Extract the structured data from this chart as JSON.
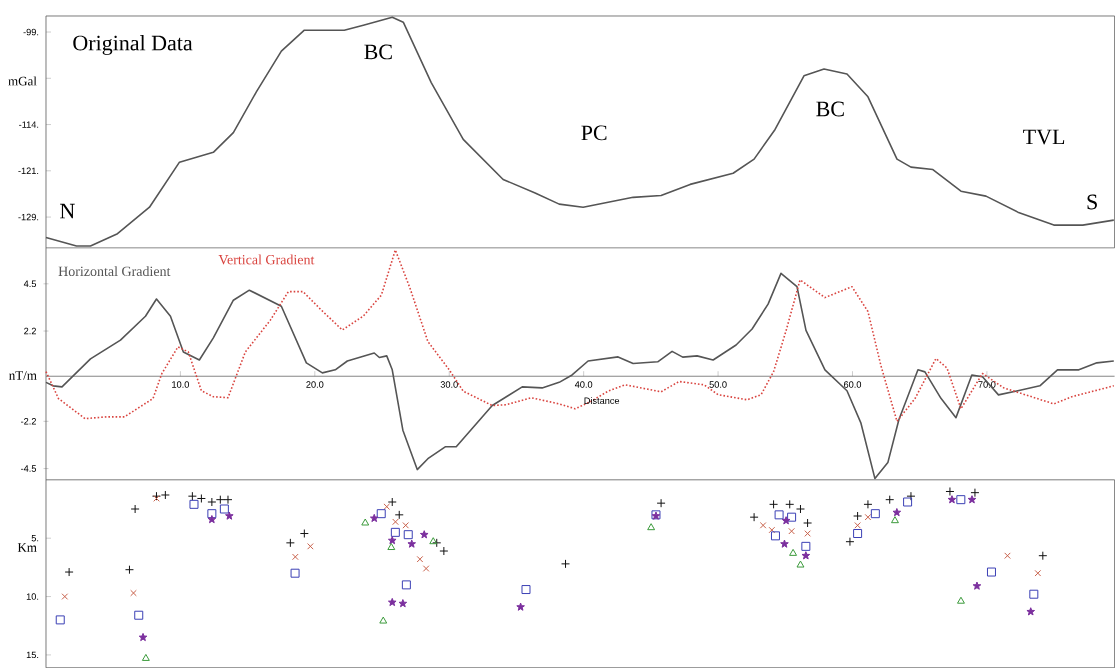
{
  "chart_data": [
    {
      "type": "line",
      "ylabel": "mGal",
      "color": "#555555",
      "line_style": "solid",
      "tick_labels": "y",
      "x": [
        0,
        2.27,
        3.31,
        5.32,
        7.7,
        9.93,
        12.45,
        13.94,
        15.65,
        17.51,
        19.22,
        22.19,
        23.61,
        25.76,
        26.58,
        28.66,
        31.04,
        34.01,
        36.39,
        38.18,
        39.96,
        43.68,
        45.76,
        47.92,
        51.12,
        52.68,
        54.24,
        56.39,
        57.88,
        59.59,
        61.15,
        63.31,
        64.35,
        65.98,
        68.07,
        69.93,
        72.3,
        74.98,
        77.13,
        79.44
      ],
      "values": [
        -132.3,
        -133.7,
        -133.7,
        -131.7,
        -127.4,
        -120.1,
        -118.5,
        -115.3,
        -108.7,
        -102.1,
        -98.7,
        -98.7,
        -97.9,
        -96.6,
        -97.4,
        -107.2,
        -116.4,
        -122.9,
        -125.1,
        -126.9,
        -127.4,
        -125.8,
        -125.5,
        -123.7,
        -121.9,
        -119.6,
        -114.8,
        -106.1,
        -105.0,
        -105.8,
        -109.5,
        -119.6,
        -120.9,
        -121.3,
        -124.8,
        -125.6,
        -128.2,
        -130.3,
        -130.3,
        -129.5
      ],
      "xlim": [
        0,
        79.5
      ],
      "ylim": [
        -134,
        -96.4
      ],
      "yticks": [
        {
          "value": -99,
          "label": "-99."
        },
        {
          "value": -106.5,
          "label": null
        },
        {
          "value": -114,
          "label": "-114."
        },
        {
          "value": -121.5,
          "label": "-121."
        },
        {
          "value": -129,
          "label": "-129."
        }
      ],
      "annotations": [
        "Original Data",
        "BC",
        "PC",
        "BC",
        "TVL",
        "N",
        "S"
      ]
    },
    {
      "type": "line",
      "xlabel": "Distance",
      "ylabel": "nT/m",
      "xlim": [
        0,
        79.5
      ],
      "ylim": [
        -5.05,
        6.25
      ],
      "xticks": [
        {
          "value": 10,
          "label": "10.0"
        },
        {
          "value": 20,
          "label": "20.0"
        },
        {
          "value": 30,
          "label": "30.0"
        },
        {
          "value": 40,
          "label": "40.0"
        },
        {
          "value": 50,
          "label": "50.0"
        },
        {
          "value": 60,
          "label": "60.0"
        },
        {
          "value": 70,
          "label": "70.0"
        }
      ],
      "yticks": [
        4.5,
        2.2,
        -2.2,
        -4.5
      ],
      "series": [
        {
          "name": "Horizontal Gradient",
          "color": "#555555",
          "line_style": "solid",
          "x": [
            0,
            0.53,
            1.19,
            3.31,
            5.54,
            7.4,
            8.22,
            9.26,
            10.22,
            11.41,
            12.45,
            13.94,
            15.13,
            17.51,
            19.37,
            20.56,
            21.52,
            22.42,
            24.42,
            24.8,
            25.35,
            25.76,
            26.55,
            27.62,
            28.41,
            29.7,
            30.52,
            33.2,
            35.43,
            36.91,
            38.18,
            39.14,
            40.33,
            42.56,
            43.68,
            45.51,
            46.58,
            47.37,
            48.44,
            49.63,
            51.34,
            52.53,
            53.72,
            54.68,
            55.87,
            56.54,
            57.95,
            59.59,
            60.63,
            61.67,
            62.63,
            63.45,
            64.87,
            65.39,
            66.58,
            67.7,
            68.88,
            69.67,
            70.86,
            72.3,
            73.94,
            75.25,
            76.84,
            78.18,
            79.44
          ],
          "values": [
            -0.3,
            -0.47,
            -0.52,
            0.84,
            1.76,
            2.92,
            3.76,
            2.92,
            1.18,
            0.79,
            1.87,
            3.7,
            4.19,
            3.41,
            0.65,
            0.16,
            0.31,
            0.74,
            1.13,
            0.91,
            0.99,
            0.31,
            -2.63,
            -4.55,
            -4.02,
            -3.44,
            -3.44,
            -1.43,
            -0.52,
            -0.57,
            -0.3,
            0.06,
            0.74,
            0.94,
            0.62,
            0.7,
            1.21,
            0.93,
            0.99,
            0.79,
            1.52,
            2.3,
            3.51,
            5.01,
            4.36,
            2.23,
            0.31,
            -0.71,
            -2.29,
            -4.99,
            -4.21,
            -2.12,
            0.31,
            0.21,
            -1.08,
            -2.02,
            0.06,
            -0.03,
            -0.91,
            -0.71,
            -0.47,
            0.31,
            0.31,
            0.65,
            0.74
          ]
        },
        {
          "name": "Vertical Gradient",
          "color": "#d9443f",
          "line_style": "dotted",
          "x": [
            0,
            0.93,
            2.91,
            4.5,
            5.84,
            7.96,
            8.62,
            9.82,
            10.59,
            11.56,
            12.45,
            13.54,
            14.83,
            16.69,
            18.03,
            19.12,
            20.41,
            22.04,
            23.61,
            24.95,
            25.99,
            27.08,
            28.41,
            30.0,
            31.04,
            33.2,
            34.24,
            36.1,
            38.18,
            39.37,
            40.48,
            41.82,
            43.08,
            45.76,
            47.1,
            48.96,
            50.0,
            52.16,
            53.2,
            54.13,
            55.06,
            56.1,
            57.95,
            59.96,
            61.15,
            62.12,
            63.31,
            64.65,
            66.21,
            67.03,
            68.07,
            69.67,
            71.26,
            74.98,
            76.32,
            79.44
          ],
          "values": [
            0.22,
            -1.09,
            -2.07,
            -1.98,
            -1.98,
            -1.09,
            0.13,
            1.43,
            1.18,
            -0.71,
            -1.0,
            -1.05,
            1.18,
            2.73,
            4.12,
            4.12,
            3.27,
            2.25,
            2.93,
            3.95,
            6.15,
            4.29,
            1.69,
            0.31,
            -0.73,
            -1.43,
            -1.39,
            -1.05,
            -1.35,
            -1.59,
            -1.25,
            -0.73,
            -0.42,
            -0.76,
            -0.26,
            -0.42,
            -0.9,
            -1.15,
            -0.9,
            0.22,
            2.22,
            4.69,
            3.83,
            4.36,
            3.15,
            0.5,
            -2.2,
            -1.09,
            0.86,
            0.4,
            -1.59,
            0.13,
            -0.57,
            -1.35,
            -1.0,
            -0.47
          ]
        }
      ]
    },
    {
      "type": "scatter",
      "ylabel": "Km",
      "tick_labels": "y",
      "xlim": [
        0,
        79.5
      ],
      "ylim": [
        16.1,
        0
      ],
      "yticks": [
        {
          "value": 5,
          "label": "5."
        },
        {
          "value": 10,
          "label": "10."
        },
        {
          "value": 15,
          "label": "15."
        }
      ],
      "series": [
        {
          "color": "#111111",
          "marker": "plus",
          "x": [
            1.72,
            6.21,
            6.63,
            8.22,
            8.88,
            10.89,
            11.56,
            12.34,
            12.97,
            13.54,
            18.18,
            19.22,
            25.76,
            26.28,
            29.07,
            29.6,
            38.65,
            45.76,
            52.68,
            54.13,
            55.33,
            56.13,
            56.66,
            59.81,
            60.38,
            61.15,
            62.77,
            64.35,
            67.25,
            69.11,
            74.16
          ],
          "values": [
            7.9,
            7.7,
            2.5,
            1.4,
            1.3,
            1.4,
            1.6,
            1.9,
            1.7,
            1.7,
            5.4,
            4.6,
            1.9,
            3.0,
            5.4,
            6.1,
            7.2,
            2.0,
            3.2,
            2.1,
            2.1,
            2.5,
            3.7,
            5.3,
            3.1,
            2.1,
            1.7,
            1.4,
            1.0,
            1.1,
            6.5
          ]
        },
        {
          "color": "#c8604a",
          "marker": "cross",
          "x": [
            1.4,
            6.51,
            8.22,
            18.55,
            19.67,
            25.35,
            26.0,
            26.76,
            27.82,
            28.28,
            53.35,
            54.0,
            55.47,
            56.66,
            60.38,
            61.15,
            71.53,
            73.79
          ],
          "values": [
            10.0,
            9.7,
            1.6,
            6.6,
            5.7,
            2.3,
            3.6,
            3.9,
            6.8,
            7.6,
            3.9,
            4.3,
            4.4,
            4.6,
            3.9,
            3.2,
            6.5,
            8.0
          ]
        },
        {
          "color": "#3a3fb5",
          "marker": "square",
          "x": [
            1.06,
            6.9,
            11.01,
            12.34,
            13.27,
            18.53,
            24.94,
            25.99,
            26.95,
            26.81,
            35.71,
            45.38,
            54.27,
            54.54,
            55.47,
            56.53,
            60.38,
            61.7,
            64.1,
            68.06,
            70.34,
            73.49
          ],
          "values": [
            12.0,
            11.6,
            2.1,
            2.9,
            2.5,
            8.0,
            2.9,
            4.5,
            4.7,
            9.0,
            9.4,
            3.0,
            4.8,
            3.0,
            3.2,
            5.7,
            4.6,
            2.9,
            1.9,
            1.7,
            7.9,
            9.8
          ]
        },
        {
          "color": "#7b2f9e",
          "marker": "star",
          "x": [
            7.22,
            12.34,
            13.64,
            24.42,
            25.76,
            27.21,
            28.14,
            25.76,
            26.55,
            35.31,
            45.38,
            54.94,
            56.53,
            55.06,
            63.3,
            67.4,
            68.89,
            69.26,
            73.26
          ],
          "values": [
            13.5,
            3.4,
            3.1,
            3.3,
            5.2,
            5.5,
            4.7,
            10.5,
            10.6,
            10.9,
            3.1,
            5.5,
            6.5,
            3.5,
            2.8,
            1.7,
            1.7,
            9.1,
            11.3
          ]
        },
        {
          "color": "#3a9a3a",
          "marker": "triangle",
          "x": [
            7.43,
            23.75,
            25.69,
            25.09,
            28.81,
            45.02,
            55.58,
            56.13,
            63.16,
            68.07
          ],
          "values": [
            15.3,
            3.7,
            5.8,
            12.1,
            5.3,
            4.1,
            6.3,
            7.3,
            3.5,
            10.4
          ]
        }
      ]
    }
  ]
}
